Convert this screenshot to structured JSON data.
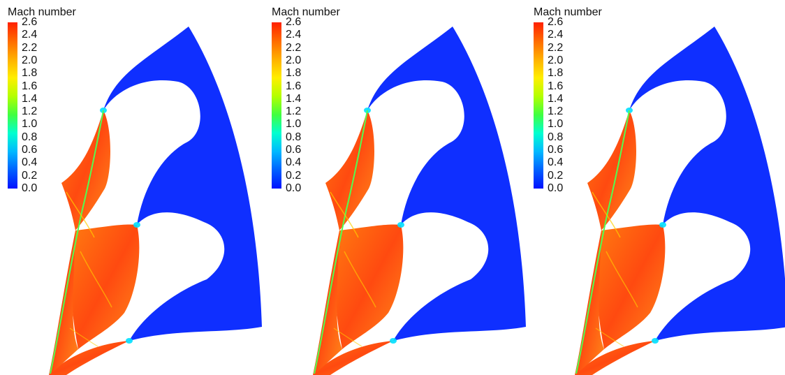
{
  "panels": [
    {
      "id": "left"
    },
    {
      "id": "middle"
    },
    {
      "id": "right"
    }
  ],
  "colorbar": {
    "title": "Mach number",
    "ticks": [
      "2.6",
      "2.4",
      "2.2",
      "2.0",
      "1.8",
      "1.6",
      "1.4",
      "1.2",
      "1.0",
      "0.8",
      "0.6",
      "0.4",
      "0.2",
      "0.0"
    ],
    "min": 0.0,
    "max": 2.6,
    "colormap": [
      "#ff2000",
      "#ff6a00",
      "#ffb000",
      "#ffee00",
      "#b4ff00",
      "#40ff40",
      "#00ffd0",
      "#00b8ff",
      "#0060ff",
      "#0010ff"
    ]
  },
  "colors": {
    "subsonic": "#0f2fff",
    "supersonic": "#ff4a10",
    "throat": "#00e0ff",
    "shock": "#ffd000",
    "wall": "#50ff50"
  }
}
